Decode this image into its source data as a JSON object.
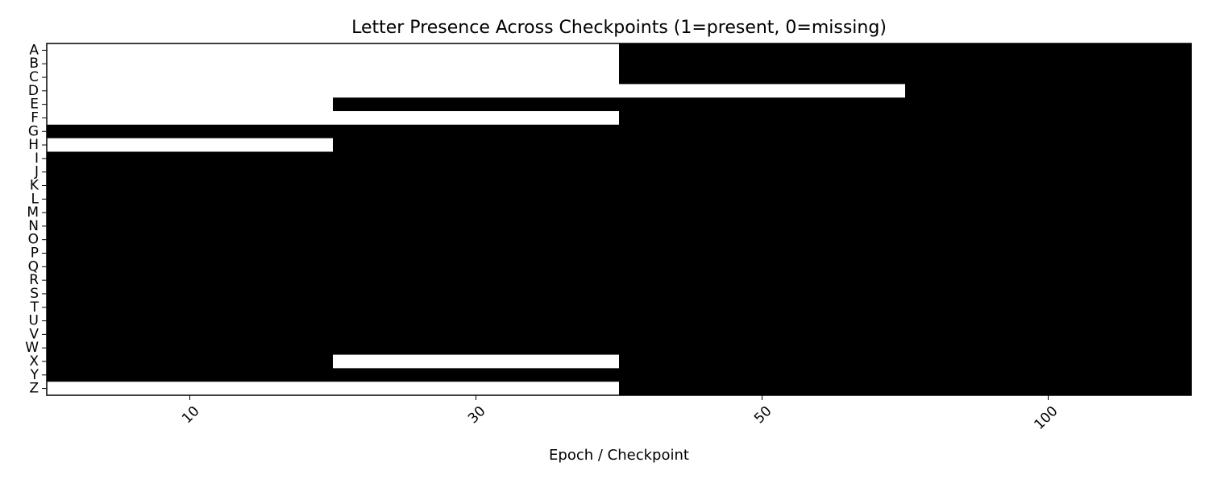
{
  "chart_data": {
    "type": "heatmap",
    "title": "Letter Presence Across Checkpoints (1=present, 0=missing)",
    "xlabel": "Epoch / Checkpoint",
    "ylabel": "",
    "x_categories": [
      "10",
      "30",
      "50",
      "100"
    ],
    "y_categories": [
      "A",
      "B",
      "C",
      "D",
      "E",
      "F",
      "G",
      "H",
      "I",
      "J",
      "K",
      "L",
      "M",
      "N",
      "O",
      "P",
      "Q",
      "R",
      "S",
      "T",
      "U",
      "V",
      "W",
      "X",
      "Y",
      "Z"
    ],
    "colormap": {
      "0": "#ffffff",
      "1": "#000000"
    },
    "values": [
      [
        0,
        0,
        1,
        1
      ],
      [
        0,
        0,
        1,
        1
      ],
      [
        0,
        0,
        1,
        1
      ],
      [
        0,
        0,
        0,
        1
      ],
      [
        0,
        1,
        1,
        1
      ],
      [
        0,
        0,
        1,
        1
      ],
      [
        1,
        1,
        1,
        1
      ],
      [
        0,
        1,
        1,
        1
      ],
      [
        1,
        1,
        1,
        1
      ],
      [
        1,
        1,
        1,
        1
      ],
      [
        1,
        1,
        1,
        1
      ],
      [
        1,
        1,
        1,
        1
      ],
      [
        1,
        1,
        1,
        1
      ],
      [
        1,
        1,
        1,
        1
      ],
      [
        1,
        1,
        1,
        1
      ],
      [
        1,
        1,
        1,
        1
      ],
      [
        1,
        1,
        1,
        1
      ],
      [
        1,
        1,
        1,
        1
      ],
      [
        1,
        1,
        1,
        1
      ],
      [
        1,
        1,
        1,
        1
      ],
      [
        1,
        1,
        1,
        1
      ],
      [
        1,
        1,
        1,
        1
      ],
      [
        1,
        1,
        1,
        1
      ],
      [
        1,
        0,
        1,
        1
      ],
      [
        1,
        1,
        1,
        1
      ],
      [
        0,
        0,
        1,
        1
      ]
    ]
  }
}
